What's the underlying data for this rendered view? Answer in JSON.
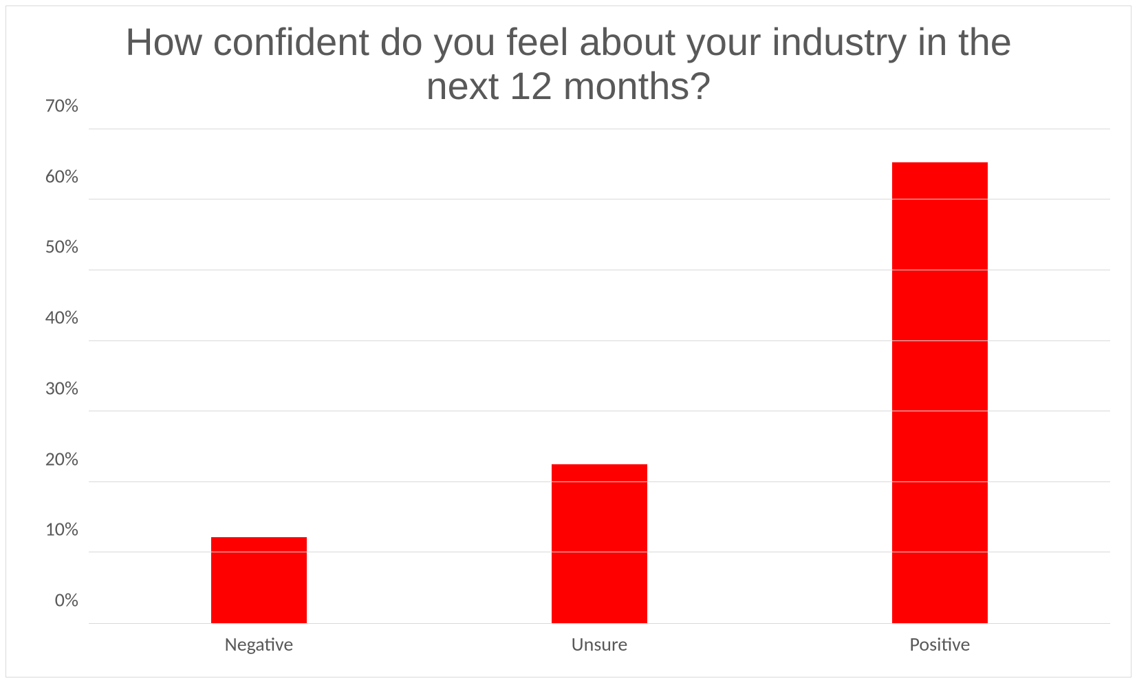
{
  "chart": {
    "type": "bar",
    "title": "How confident do you feel about your industry in the next 12 months?",
    "title_fontsize": 56,
    "title_color": "#595959",
    "categories": [
      "Negative",
      "Unsure",
      "Positive"
    ],
    "values": [
      12.2,
      22.5,
      65.3
    ],
    "bar_colors": [
      "#ff0000",
      "#ff0000",
      "#ff0000"
    ],
    "bar_width_pct": 28,
    "y_axis": {
      "min": 0,
      "max": 70,
      "tick_step": 10,
      "ticks": [
        0,
        10,
        20,
        30,
        40,
        50,
        60,
        70
      ],
      "tick_labels": [
        "0%",
        "10%",
        "20%",
        "30%",
        "40%",
        "50%",
        "60%",
        "70%"
      ],
      "format": "percent"
    },
    "axis_label_fontsize": 28,
    "axis_label_color": "#595959",
    "background_color": "#ffffff",
    "grid_color": "#d9d9d9",
    "border_color": "#d9d9d9"
  }
}
